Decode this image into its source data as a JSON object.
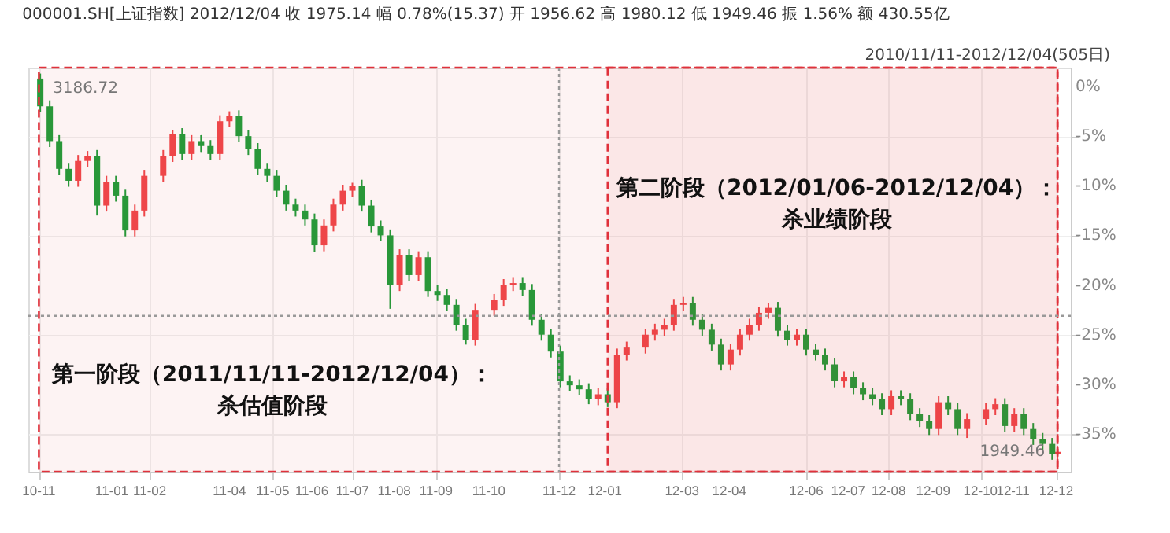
{
  "chart_data": {
    "type": "candlestick",
    "title": "000001.SH[上证指数]   2012/12/04   收 1975.14   幅 0.78%(15.37)   开 1956.62   高 1980.12   低 1949.46   振 1.56%   额 430.55亿",
    "subtitle": "2010/11/11-2012/12/04(505日)",
    "series": [
      {
        "color": "#f0484b",
        "x": [
          "2010-12-10",
          "2010-12-17",
          "2010-12-31",
          "2011-01-21",
          "2011-01-28",
          "2011-02-11",
          "2011-02-18",
          "2011-03-04",
          "2011-03-25",
          "2011-04-01",
          "2011-06-10",
          "2011-06-17",
          "2011-06-24",
          "2011-07-01",
          "2011-08-05",
          "2011-08-19",
          "2011-09-30",
          "2011-10-14",
          "2011-10-21",
          "2011-10-28",
          "2011-12-30",
          "2012-01-13",
          "2012-01-20",
          "2012-02-03",
          "2012-02-10",
          "2012-02-17",
          "2012-02-24",
          "2012-03-02",
          "2012-04-06",
          "2012-04-13",
          "2012-04-20",
          "2012-04-27",
          "2012-05-04",
          "2012-05-25",
          "2012-06-29",
          "2012-08-03",
          "2012-09-07",
          "2012-09-28",
          "2012-10-12",
          "2012-10-19",
          "2012-11-02",
          "2012-12-04"
        ],
        "ohlc": [
          [
            -9.5,
            -6.9,
            -10.1,
            -7.5
          ],
          [
            -7.5,
            -6.5,
            -8.1,
            -7
          ],
          [
            -12,
            -9,
            -12.6,
            -9.6
          ],
          [
            -14.5,
            -11.9,
            -15.1,
            -12.5
          ],
          [
            -12.5,
            -8.4,
            -13.1,
            -9
          ],
          [
            -9,
            -6.4,
            -9.6,
            -7
          ],
          [
            -7,
            -4.4,
            -7.6,
            -4.8
          ],
          [
            -6.8,
            -4.9,
            -7.4,
            -5.5
          ],
          [
            -6.8,
            -2.9,
            -7.4,
            -3.5
          ],
          [
            -3.5,
            -2.5,
            -4.1,
            -3
          ],
          [
            -16,
            -13.4,
            -16.6,
            -14
          ],
          [
            -14,
            -11.3,
            -14.6,
            -11.9
          ],
          [
            -11.9,
            -9.9,
            -12.5,
            -10.5
          ],
          [
            -10.5,
            -9.7,
            -11.1,
            -10
          ],
          [
            -20,
            -16.4,
            -20.6,
            -17
          ],
          [
            -19,
            -16.6,
            -19.6,
            -17.2
          ],
          [
            -25.5,
            -21.9,
            -26.1,
            -22.5
          ],
          [
            -22.5,
            -20.9,
            -23.1,
            -21.5
          ],
          [
            -21.5,
            -19.4,
            -22.1,
            -20
          ],
          [
            -20,
            -19.2,
            -20.6,
            -19.8
          ],
          [
            -31.5,
            -30.4,
            -32.1,
            -31
          ],
          [
            -31.8,
            -26.4,
            -32.4,
            -27
          ],
          [
            -27,
            -25.7,
            -27.6,
            -26.3
          ],
          [
            -26.3,
            -24.4,
            -26.9,
            -25
          ],
          [
            -25,
            -23.9,
            -25.6,
            -24.5
          ],
          [
            -24.5,
            -23.4,
            -25.1,
            -24
          ],
          [
            -24,
            -21.4,
            -24.6,
            -22
          ],
          [
            -22,
            -21.2,
            -22.6,
            -21.8
          ],
          [
            -28,
            -25.9,
            -28.6,
            -26.5
          ],
          [
            -26.5,
            -24.4,
            -27.1,
            -25
          ],
          [
            -25,
            -23.4,
            -25.6,
            -24
          ],
          [
            -24,
            -22.2,
            -24.6,
            -22.8
          ],
          [
            -22.8,
            -21.8,
            -23.4,
            -22.3
          ],
          [
            -25.5,
            -24.4,
            -26.1,
            -25
          ],
          [
            -29.7,
            -28.7,
            -30.3,
            -29.3
          ],
          [
            -32.5,
            -30.6,
            -33.1,
            -31.2
          ],
          [
            -34.5,
            -31.2,
            -35.1,
            -31.8
          ],
          [
            -34.5,
            -32.9,
            -35.4,
            -33.5
          ],
          [
            -33.5,
            -31.9,
            -34.1,
            -32.5
          ],
          [
            -32.5,
            -31.4,
            -33.1,
            -32
          ],
          [
            -34.2,
            -32.4,
            -34.8,
            -33
          ],
          [
            -37,
            -36.2,
            -38,
            -36.8
          ]
        ]
      },
      {
        "color": "#1e9e3a",
        "x": [
          "2010-11-12",
          "2010-11-19",
          "2010-11-26",
          "2010-12-03",
          "2010-12-24",
          "2011-01-07",
          "2011-01-14",
          "2011-02-25",
          "2011-03-11",
          "2011-03-18",
          "2011-04-08",
          "2011-04-15",
          "2011-04-22",
          "2011-04-29",
          "2011-05-06",
          "2011-05-13",
          "2011-05-20",
          "2011-05-27",
          "2011-06-03",
          "2011-07-08",
          "2011-07-15",
          "2011-07-22",
          "2011-07-29",
          "2011-08-12",
          "2011-08-26",
          "2011-09-02",
          "2011-09-09",
          "2011-09-16",
          "2011-09-23",
          "2011-11-04",
          "2011-11-11",
          "2011-11-18",
          "2011-11-25",
          "2011-12-02",
          "2011-12-09",
          "2011-12-16",
          "2011-12-23",
          "2012-01-06",
          "2012-03-09",
          "2012-03-16",
          "2012-03-23",
          "2012-03-30",
          "2012-05-11",
          "2012-05-18",
          "2012-06-01",
          "2012-06-08",
          "2012-06-15",
          "2012-06-22",
          "2012-07-06",
          "2012-07-13",
          "2012-07-20",
          "2012-07-27",
          "2012-08-10",
          "2012-08-17",
          "2012-08-24",
          "2012-08-31",
          "2012-09-14",
          "2012-09-21",
          "2012-10-26",
          "2012-11-09",
          "2012-11-16",
          "2012-11-23",
          "2012-11-30"
        ],
        "ohlc": [
          [
            0.8,
            1.3,
            -2.6,
            -2
          ],
          [
            -2,
            -1.4,
            -6.1,
            -5.5
          ],
          [
            -5.5,
            -4.9,
            -8.9,
            -8.3
          ],
          [
            -8.3,
            -7.7,
            -10.1,
            -9.5
          ],
          [
            -7,
            -6.4,
            -13,
            -12
          ],
          [
            -9.6,
            -9,
            -11.6,
            -11
          ],
          [
            -11,
            -10.4,
            -15.1,
            -14.5
          ],
          [
            -4.8,
            -4.2,
            -7.4,
            -6.8
          ],
          [
            -5.5,
            -4.9,
            -6.6,
            -6
          ],
          [
            -6,
            -5.4,
            -7.4,
            -6.8
          ],
          [
            -3,
            -2.4,
            -5.6,
            -5
          ],
          [
            -5,
            -4.4,
            -6.9,
            -6.3
          ],
          [
            -6.3,
            -5.7,
            -8.9,
            -8.3
          ],
          [
            -8.3,
            -7.7,
            -9.6,
            -9
          ],
          [
            -9,
            -8.4,
            -11.1,
            -10.5
          ],
          [
            -10.5,
            -9.9,
            -12.5,
            -11.9
          ],
          [
            -11.9,
            -11.3,
            -13.1,
            -12.5
          ],
          [
            -12.5,
            -11.9,
            -14,
            -13.4
          ],
          [
            -13.4,
            -12.8,
            -16.7,
            -16
          ],
          [
            -10,
            -9.4,
            -12.6,
            -12
          ],
          [
            -12,
            -11.4,
            -14.7,
            -14.1
          ],
          [
            -14.1,
            -13.5,
            -15.6,
            -15
          ],
          [
            -15,
            -14.4,
            -22.4,
            -20
          ],
          [
            -17,
            -16.4,
            -19.6,
            -19
          ],
          [
            -17.2,
            -16.6,
            -21.2,
            -20.6
          ],
          [
            -20.6,
            -20,
            -21.6,
            -21
          ],
          [
            -21,
            -20.4,
            -22.6,
            -22
          ],
          [
            -22,
            -21.4,
            -24.6,
            -24
          ],
          [
            -24,
            -23.4,
            -26,
            -25.5
          ],
          [
            -19.8,
            -19.2,
            -21.1,
            -20.5
          ],
          [
            -20.5,
            -19.9,
            -24.1,
            -23.5
          ],
          [
            -23.5,
            -22.9,
            -25.6,
            -25
          ],
          [
            -25,
            -24.4,
            -27.3,
            -26.7
          ],
          [
            -26.7,
            -26.1,
            -30.3,
            -29.7
          ],
          [
            -29.7,
            -29.1,
            -30.7,
            -30.1
          ],
          [
            -30.1,
            -29.5,
            -31.1,
            -30.5
          ],
          [
            -30.5,
            -29.9,
            -32,
            -31.5
          ],
          [
            -31,
            -30.4,
            -32.3,
            -31.8
          ],
          [
            -21.8,
            -21.2,
            -24.1,
            -23.5
          ],
          [
            -23.5,
            -22.9,
            -25.1,
            -24.5
          ],
          [
            -24.5,
            -23.9,
            -26.6,
            -26
          ],
          [
            -26,
            -25.4,
            -28.6,
            -28
          ],
          [
            -22.3,
            -21.7,
            -25.2,
            -24.6
          ],
          [
            -24.6,
            -24,
            -26.1,
            -25.5
          ],
          [
            -25,
            -24.4,
            -27.1,
            -26.5
          ],
          [
            -26.5,
            -25.9,
            -27.6,
            -27
          ],
          [
            -27,
            -26.4,
            -28.6,
            -28
          ],
          [
            -28,
            -27.4,
            -30.3,
            -29.7
          ],
          [
            -29.3,
            -28.7,
            -31,
            -30.4
          ],
          [
            -30.4,
            -29.8,
            -31.6,
            -31
          ],
          [
            -31,
            -30.4,
            -32.1,
            -31.5
          ],
          [
            -31.5,
            -30.9,
            -33.1,
            -32.5
          ],
          [
            -31.2,
            -30.6,
            -32.1,
            -31.5
          ],
          [
            -31.5,
            -30.9,
            -33.6,
            -33
          ],
          [
            -33,
            -32.4,
            -34.3,
            -33.7
          ],
          [
            -33.7,
            -33.1,
            -35.1,
            -34.5
          ],
          [
            -31.8,
            -31.2,
            -33.1,
            -32.5
          ],
          [
            -32.5,
            -31.9,
            -35.1,
            -34.5
          ],
          [
            -32,
            -31.4,
            -34.8,
            -34.2
          ],
          [
            -33,
            -32.4,
            -35.1,
            -34.5
          ],
          [
            -34.5,
            -33.9,
            -36.1,
            -35.5
          ],
          [
            -35.5,
            -34.9,
            -36.6,
            -36
          ],
          [
            -36,
            -35.4,
            -37.6,
            -37
          ]
        ]
      }
    ],
    "xlim": [
      "2010-11-09",
      "2012-12-08"
    ],
    "xticks": [
      {
        "value": "2010-11-11",
        "label": "10-11"
      },
      {
        "value": "2011-01-04",
        "label": "11-01"
      },
      {
        "value": "2011-02-01",
        "label": "11-02"
      },
      {
        "value": "2011-04-01",
        "label": "11-04"
      },
      {
        "value": "2011-05-03",
        "label": "11-05"
      },
      {
        "value": "2011-06-01",
        "label": "11-06"
      },
      {
        "value": "2011-07-01",
        "label": "11-07"
      },
      {
        "value": "2011-08-01",
        "label": "11-08"
      },
      {
        "value": "2011-09-01",
        "label": "11-09"
      },
      {
        "value": "2011-10-10",
        "label": "11-10"
      },
      {
        "value": "2011-12-01",
        "label": "11-12"
      },
      {
        "value": "2012-01-04",
        "label": "12-01"
      },
      {
        "value": "2012-03-01",
        "label": "12-03"
      },
      {
        "value": "2012-04-05",
        "label": "12-04"
      },
      {
        "value": "2012-06-01",
        "label": "12-06"
      },
      {
        "value": "2012-07-02",
        "label": "12-07"
      },
      {
        "value": "2012-08-01",
        "label": "12-08"
      },
      {
        "value": "2012-09-03",
        "label": "12-09"
      },
      {
        "value": "2012-10-08",
        "label": "12-10"
      },
      {
        "value": "2012-11-01",
        "label": "12-11"
      },
      {
        "value": "2012-12-03",
        "label": "12-12"
      }
    ],
    "ylim": [
      -38.8,
      1.9
    ],
    "yticks": [
      {
        "value": 0,
        "label": "0%"
      },
      {
        "value": -5,
        "label": "-5%"
      },
      {
        "value": -10,
        "label": "-10%"
      },
      {
        "value": -15,
        "label": "-15%"
      },
      {
        "value": -20,
        "label": "-20%"
      },
      {
        "value": -25,
        "label": "-25%"
      },
      {
        "value": -30,
        "label": "-30%"
      },
      {
        "value": -35,
        "label": "-35%"
      }
    ],
    "grid": true,
    "bands": [
      {
        "axis": "x",
        "from": "2010-11-11",
        "to": "2012-12-04",
        "label": "第一阶段（2011/11/11-2012/12/04）：杀估值阶段",
        "color": "#e0313b"
      },
      {
        "axis": "x",
        "from": "2012-01-06",
        "to": "2012-12-04",
        "label": "第二阶段（2012/01/06-2012/12/04）：杀业绩阶段",
        "color": "#e0313b"
      }
    ],
    "ref_lines": [
      {
        "axis": "x",
        "value": "2011-12-01",
        "color": "#999999",
        "line_style": "dotted"
      },
      {
        "axis": "y",
        "value": -23.1,
        "color": "#999999",
        "line_style": "dotted"
      }
    ],
    "annotations": [
      {
        "text": "3186.72",
        "x": "2010-11-12",
        "y": 1.3
      },
      {
        "text": "1949.46",
        "x": "2012-12-04",
        "y": -38
      }
    ]
  }
}
